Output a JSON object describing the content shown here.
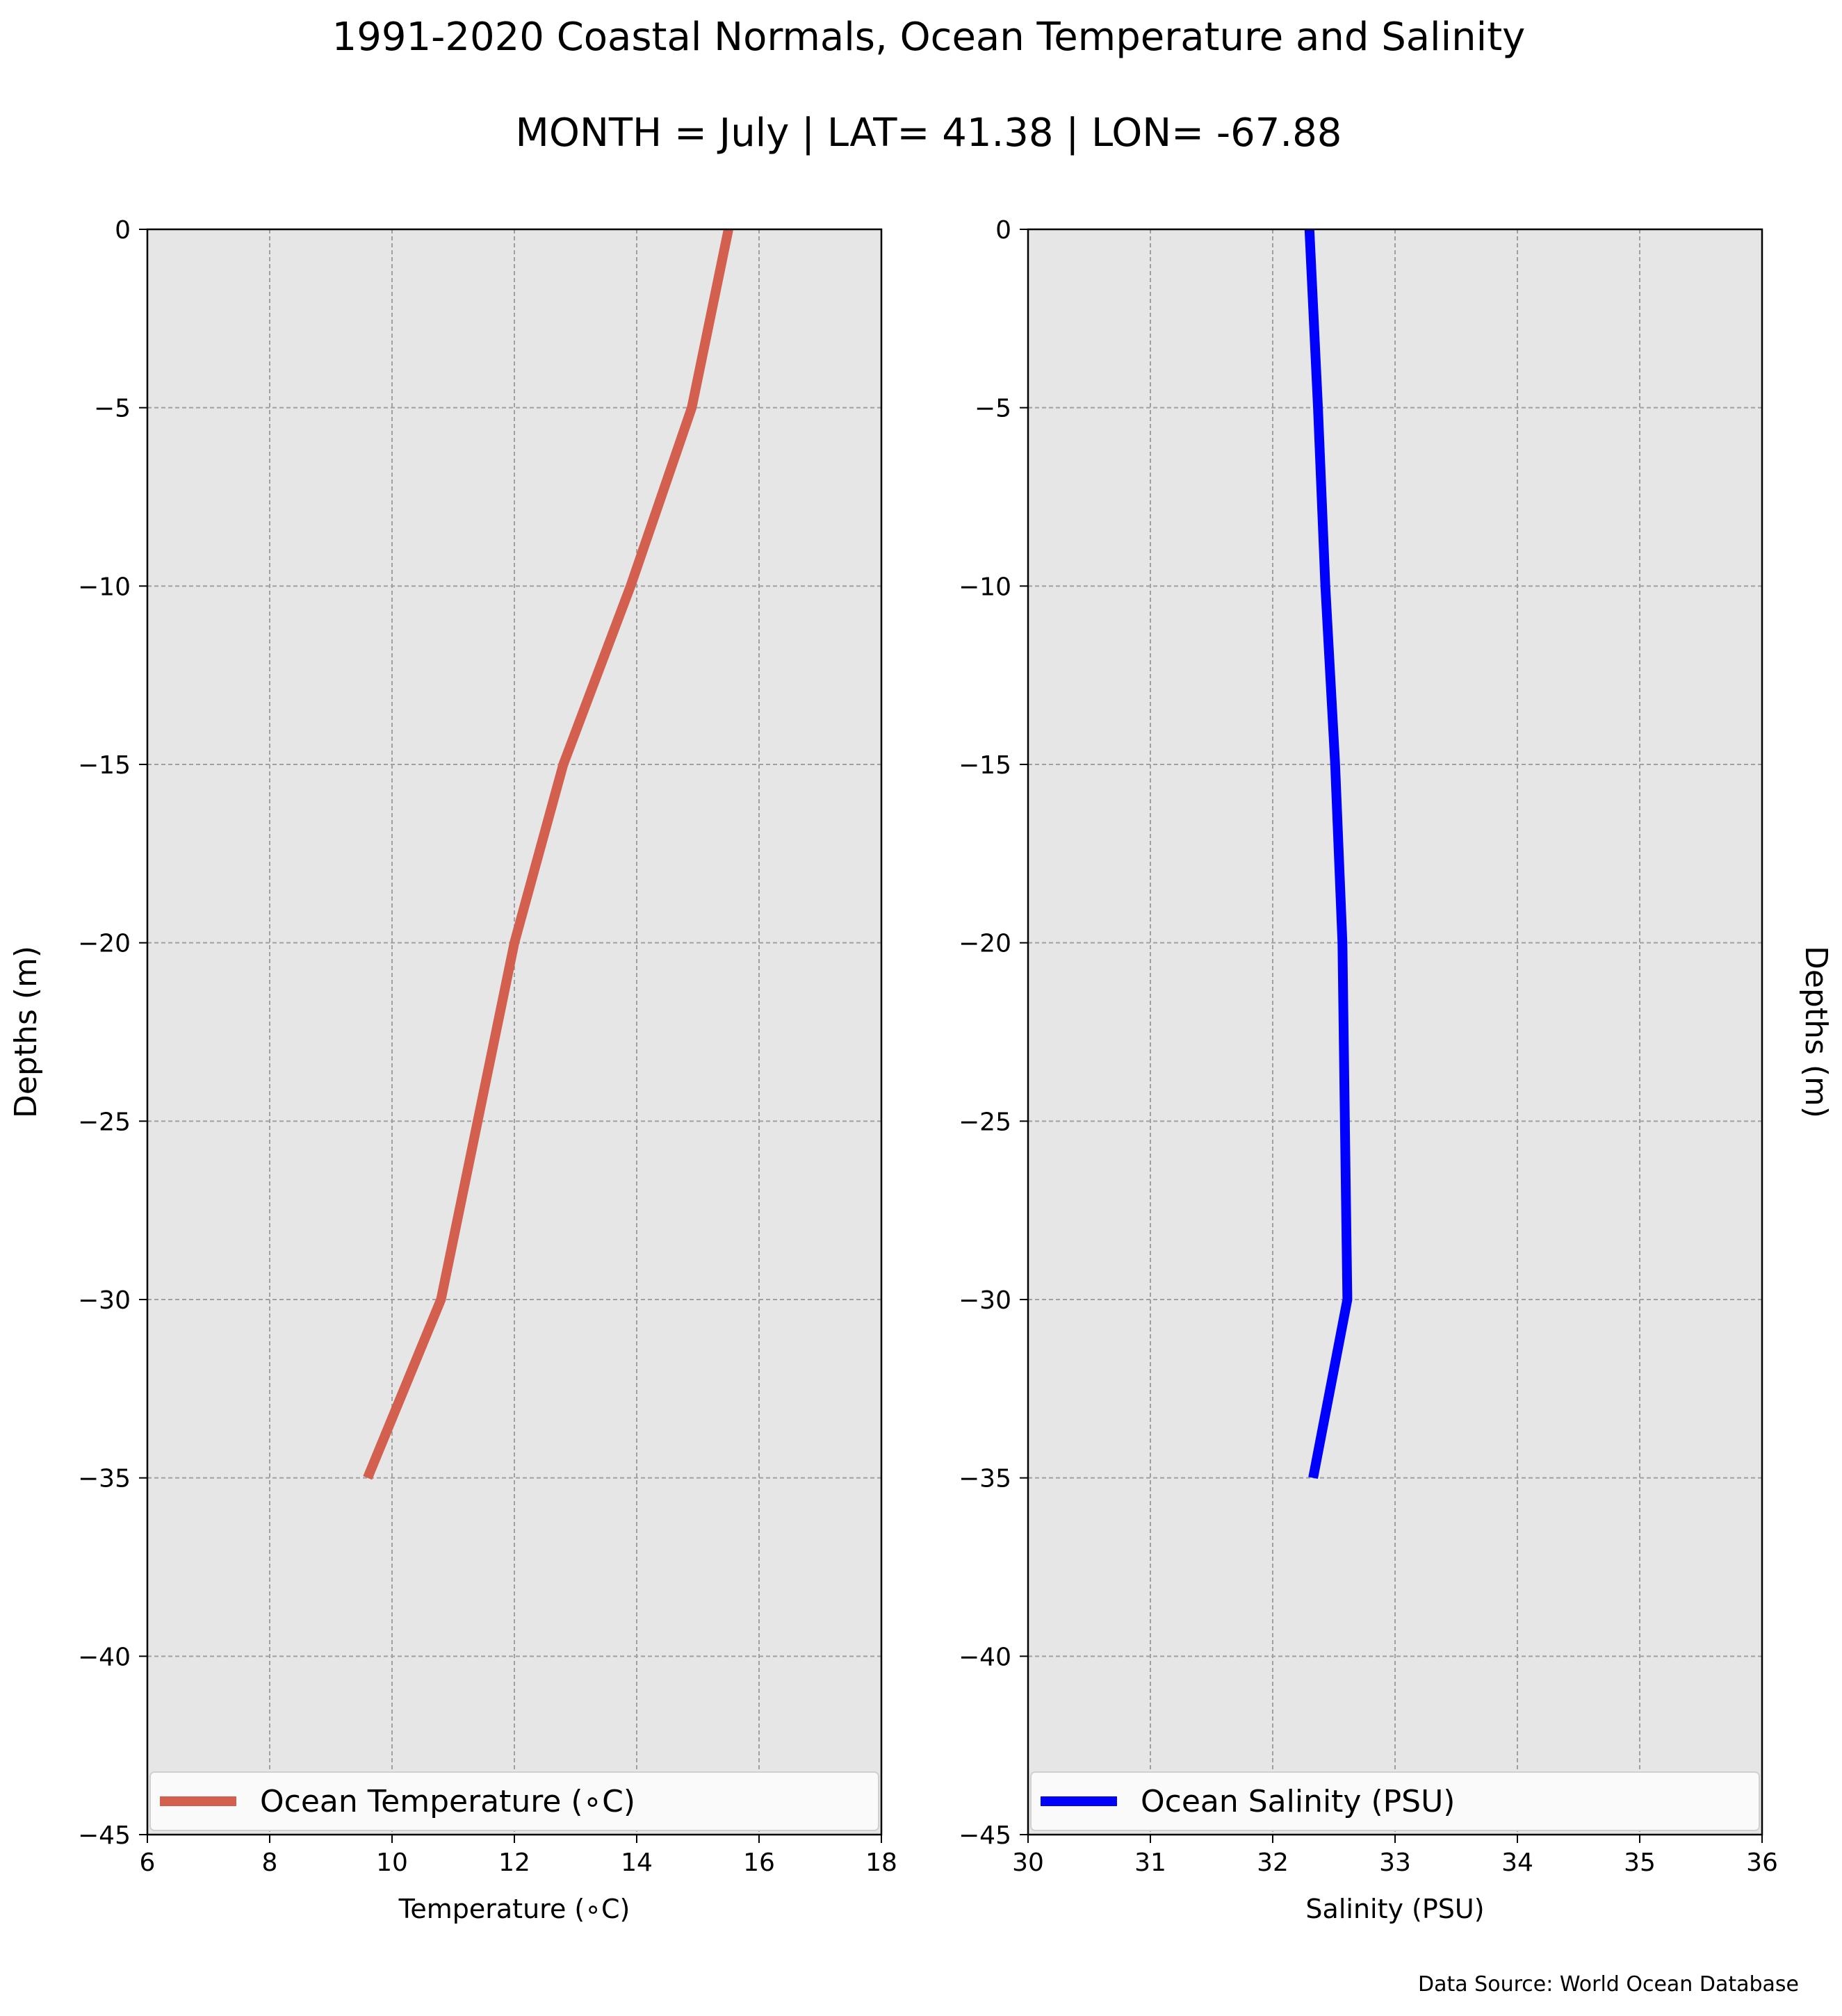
{
  "title": "1991-2020 Coastal Normals, Ocean Temperature and Salinity",
  "subtitle": "MONTH = July | LAT= 41.38 | LON= -67.88",
  "footer": "Data Source: World Ocean Database",
  "colors": {
    "background": "#e6e6e6",
    "grid": "#a0a0a0",
    "temperature": "#d35f4f",
    "salinity": "#0000ff"
  },
  "chart_data": [
    {
      "type": "line",
      "xlabel": "Temperature ($^\\circ$C)",
      "xlabel_display": "Temperature (∘C)",
      "ylabel": "Depths (m)",
      "xlim": [
        6,
        18
      ],
      "ylim": [
        -45,
        0
      ],
      "xticks": [
        6,
        8,
        10,
        12,
        14,
        16,
        18
      ],
      "yticks": [
        0,
        -5,
        -10,
        -15,
        -20,
        -25,
        -30,
        -35,
        -40,
        -45
      ],
      "grid": true,
      "legend_position": "bottom",
      "series": [
        {
          "name": "Ocean Temperature (∘C)",
          "color": "#d35f4f",
          "x": [
            15.5,
            14.9,
            13.9,
            12.8,
            12.0,
            11.4,
            10.8,
            9.6
          ],
          "y": [
            0,
            -5,
            -10,
            -15,
            -20,
            -25,
            -30,
            -35
          ]
        }
      ]
    },
    {
      "type": "line",
      "xlabel": "Salinity (PSU)",
      "ylabel": "Depths (m)",
      "xlim": [
        30,
        36
      ],
      "ylim": [
        -45,
        0
      ],
      "xticks": [
        30,
        31,
        32,
        33,
        34,
        35,
        36
      ],
      "yticks": [
        0,
        -5,
        -10,
        -15,
        -20,
        -25,
        -30,
        -35,
        -40,
        -45
      ],
      "grid": true,
      "legend_position": "bottom",
      "series": [
        {
          "name": "Ocean Salinity (PSU)",
          "color": "#0000ff",
          "x": [
            32.3,
            32.37,
            32.43,
            32.51,
            32.57,
            32.59,
            32.61,
            32.33
          ],
          "y": [
            0,
            -5,
            -10,
            -15,
            -20,
            -25,
            -30,
            -35
          ]
        }
      ]
    }
  ]
}
